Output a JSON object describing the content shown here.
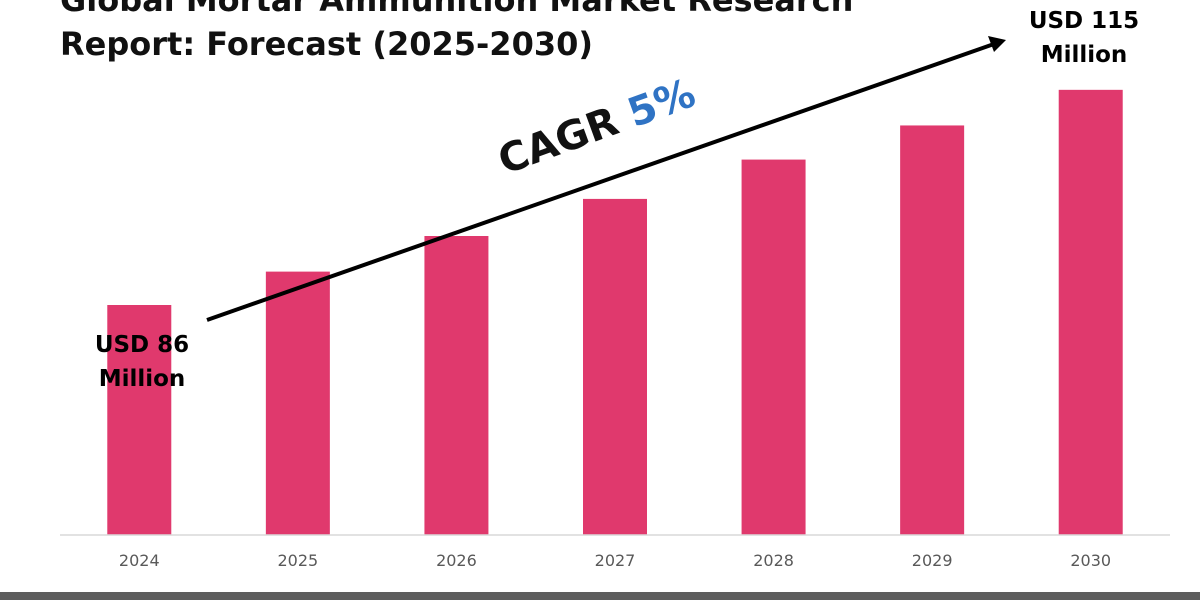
{
  "report": {
    "title_line1": "Global Mortar Ammunition Market Research",
    "title_line2": "Report: Forecast (2025-2030)"
  },
  "annotations": {
    "start_line1": "USD 86",
    "start_line2": "Million",
    "end_line1": "USD 115",
    "end_line2": "Million",
    "cagr_label": "CAGR",
    "cagr_value": "5%"
  },
  "colors": {
    "bar": "#e0396d",
    "cagr_value": "#2f73c4",
    "axis": "#d9d9d9",
    "tick_label": "#595959"
  },
  "chart_data": {
    "type": "bar",
    "categories": [
      "2024",
      "2025",
      "2026",
      "2027",
      "2028",
      "2029",
      "2030"
    ],
    "values": [
      86,
      90.5,
      95.3,
      100.3,
      105.6,
      110.2,
      115
    ],
    "ylim": [
      55,
      117
    ],
    "grid": false,
    "legend": "none",
    "trend_arrow": "from 2024 bar callout rising to 2030 bar callout"
  }
}
